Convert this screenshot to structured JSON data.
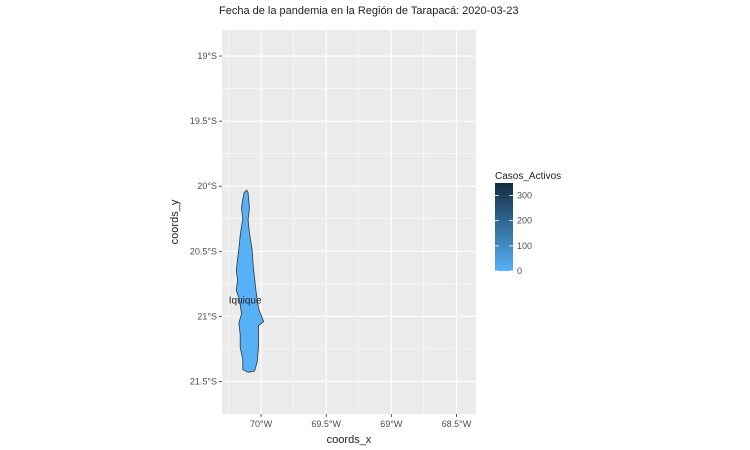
{
  "title": "Fecha de la pandemia en la Región de Tarapacá: 2020-03-23",
  "axes": {
    "x_title": "coords_x",
    "y_title": "coords_y",
    "x_ticks": [
      {
        "value": -70.0,
        "label": "70°W"
      },
      {
        "value": -69.5,
        "label": "69.5°W"
      },
      {
        "value": -69.0,
        "label": "69°W"
      },
      {
        "value": -68.5,
        "label": "68.5°W"
      }
    ],
    "y_ticks": [
      {
        "value": -19.0,
        "label": "19°S"
      },
      {
        "value": -19.5,
        "label": "19.5°S"
      },
      {
        "value": -20.0,
        "label": "20°S"
      },
      {
        "value": -20.5,
        "label": "20.5°S"
      },
      {
        "value": -21.0,
        "label": "21°S"
      },
      {
        "value": -21.5,
        "label": "21.5°S"
      }
    ],
    "x_range": [
      -70.3,
      -68.35
    ],
    "y_range": [
      -21.75,
      -18.8
    ]
  },
  "legend": {
    "title": "Casos_Activos",
    "labels": [
      "300",
      "200",
      "100",
      "0"
    ],
    "values": [
      300,
      200,
      100,
      0
    ],
    "low_color": "#56B1F7",
    "high_color": "#132B43",
    "max_value": 350
  },
  "map": {
    "region_fill": "#56B1F7",
    "region_outline": "#333333",
    "city_label": "Iquique",
    "city_lon": -70.11,
    "city_lat": -20.87,
    "cases_activos": 0
  },
  "colors": {
    "panel_background": "#EBEBEB",
    "grid_major": "#FFFFFF"
  }
}
